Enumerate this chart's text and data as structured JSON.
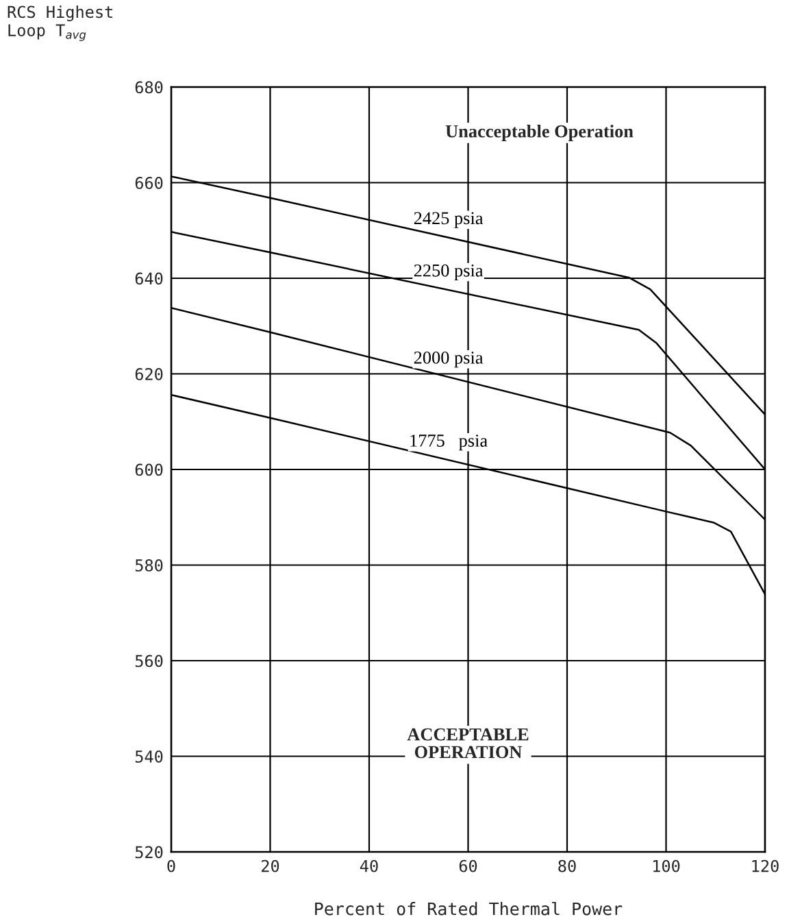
{
  "chart_data": {
    "type": "line",
    "xlabel": "Percent of Rated Thermal Power",
    "ylabel": "RCS Highest\nLoop T$_{avg}$",
    "xlim": [
      0,
      120
    ],
    "xticks": [
      0,
      20,
      40,
      60,
      80,
      100,
      120
    ],
    "ylim": [
      520,
      680
    ],
    "yticks": [
      520,
      540,
      560,
      580,
      600,
      620,
      640,
      660,
      680
    ],
    "grid": true,
    "legend": false,
    "marker": "none",
    "line_style": "solid",
    "annotations": [
      "Unacceptable Operation",
      "ACCEPTABLE\nOPERATION"
    ],
    "series": [
      {
        "name": "2425 psia",
        "color": "#000000",
        "x": [
          0,
          20,
          92.6,
          96.8,
          120
        ],
        "values": [
          661.3,
          656.8,
          640.1,
          637.7,
          611.5
        ]
      },
      {
        "name": "2250 psia",
        "color": "#000000",
        "x": [
          0,
          20,
          94.5,
          98,
          120
        ],
        "values": [
          649.7,
          645.4,
          629.2,
          626.5,
          600
        ]
      },
      {
        "name": "2000 psia",
        "color": "#000000",
        "x": [
          0,
          20,
          100.8,
          105,
          120
        ],
        "values": [
          633.8,
          628.7,
          607.7,
          605.0,
          589.5
        ]
      },
      {
        "name": "1775   psia",
        "color": "#000000",
        "x": [
          0,
          20,
          100,
          109.6,
          113.1,
          120
        ],
        "values": [
          615.6,
          610.8,
          591.2,
          588.9,
          587.0,
          573.9
        ]
      }
    ]
  }
}
